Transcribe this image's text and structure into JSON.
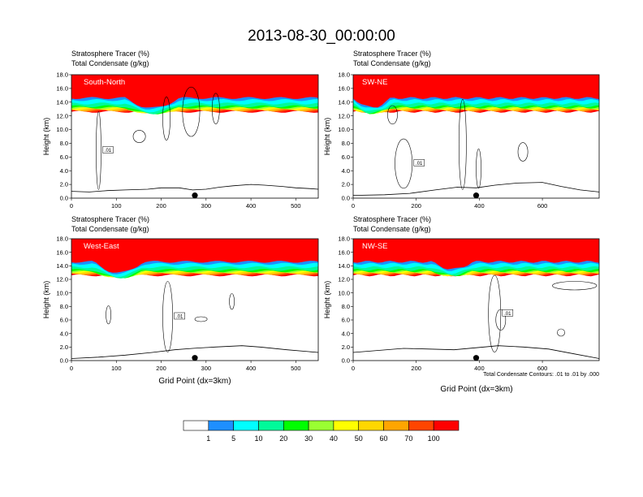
{
  "figure": {
    "title": "2013-08-30_00:00:00",
    "contour_note": "Total Condensate Contours: .01 to .01 by .000",
    "contour_label": ".01",
    "marker": "black-dot"
  },
  "colorbar": {
    "colors": [
      "#ffffff",
      "#1e8fff",
      "#00ffff",
      "#00fa9a",
      "#00ff00",
      "#9aff32",
      "#ffff00",
      "#ffd700",
      "#ffa500",
      "#ff4500",
      "#ff0000"
    ],
    "labels": [
      "1",
      "5",
      "10",
      "20",
      "30",
      "40",
      "50",
      "60",
      "70",
      "100"
    ]
  },
  "chart_data": [
    {
      "type": "heatmap",
      "panel": "South-North",
      "title_line1": "Stratosphere Tracer   (%)",
      "title_line2": "Total Condensate   (g/kg)",
      "ylabel": "Height (km)",
      "xlabel": "",
      "xlim": [
        0,
        550
      ],
      "ylim": [
        0,
        18
      ],
      "xticks": [
        0,
        100,
        200,
        300,
        400,
        500
      ],
      "yticks": [
        "0.0",
        "2.0",
        "4.0",
        "6.0",
        "8.0",
        "10.0",
        "12.0",
        "14.0",
        "16.0",
        "18.0"
      ],
      "marker_x": 275,
      "terrain": [
        [
          0,
          1.0
        ],
        [
          40,
          0.9
        ],
        [
          80,
          1.1
        ],
        [
          120,
          1.2
        ],
        [
          170,
          1.3
        ],
        [
          200,
          1.5
        ],
        [
          240,
          1.5
        ],
        [
          270,
          1.2
        ],
        [
          300,
          1.3
        ],
        [
          330,
          1.6
        ],
        [
          360,
          1.8
        ],
        [
          400,
          2.0
        ],
        [
          430,
          1.9
        ],
        [
          470,
          1.7
        ],
        [
          500,
          1.5
        ],
        [
          530,
          1.4
        ],
        [
          550,
          1.3
        ]
      ],
      "tracer_layers": [
        [
          0,
          14.6
        ],
        [
          1,
          14.3
        ],
        [
          5,
          13.8
        ],
        [
          10,
          13.4
        ],
        [
          20,
          13.2
        ],
        [
          30,
          13.1
        ],
        [
          40,
          13.0
        ],
        [
          50,
          12.9
        ],
        [
          60,
          12.8
        ],
        [
          70,
          12.7
        ],
        [
          100,
          12.6
        ]
      ],
      "tracer_dip": {
        "x_start": 120,
        "x_end": 240,
        "depth": 1.6
      }
    },
    {
      "type": "heatmap",
      "panel": "SW-NE",
      "title_line1": "Stratosphere Tracer   (%)",
      "title_line2": "Total Condensate   (g/kg)",
      "ylabel": "Height (km)",
      "xlabel": "",
      "xlim": [
        0,
        780
      ],
      "ylim": [
        0,
        18
      ],
      "xticks": [
        0,
        200,
        400,
        600
      ],
      "yticks": [
        "0.0",
        "2.0",
        "4.0",
        "6.0",
        "8.0",
        "10.0",
        "12.0",
        "14.0",
        "16.0",
        "18.0"
      ],
      "marker_x": 390,
      "terrain": [
        [
          0,
          0.4
        ],
        [
          100,
          0.5
        ],
        [
          180,
          0.7
        ],
        [
          260,
          1.2
        ],
        [
          330,
          1.6
        ],
        [
          390,
          1.5
        ],
        [
          450,
          1.9
        ],
        [
          520,
          2.2
        ],
        [
          600,
          2.3
        ],
        [
          660,
          1.7
        ],
        [
          720,
          1.2
        ],
        [
          780,
          0.9
        ]
      ],
      "tracer_layers": [
        [
          0,
          14.6
        ],
        [
          1,
          14.3
        ],
        [
          5,
          13.8
        ],
        [
          10,
          13.4
        ],
        [
          20,
          13.2
        ],
        [
          30,
          13.1
        ],
        [
          40,
          13.0
        ],
        [
          50,
          12.9
        ],
        [
          60,
          12.8
        ],
        [
          70,
          12.7
        ],
        [
          100,
          12.6
        ]
      ],
      "tracer_dip": {
        "x_start": 0,
        "x_end": 120,
        "depth": 1.5
      }
    },
    {
      "type": "heatmap",
      "panel": "West-East",
      "title_line1": "Stratosphere Tracer   (%)",
      "title_line2": "Total Condensate   (g/kg)",
      "ylabel": "Height (km)",
      "xlabel": "Grid Point (dx=3km)",
      "xlim": [
        0,
        550
      ],
      "ylim": [
        0,
        18
      ],
      "xticks": [
        0,
        100,
        200,
        300,
        400,
        500
      ],
      "yticks": [
        "0.0",
        "2.0",
        "4.0",
        "6.0",
        "8.0",
        "10.0",
        "12.0",
        "14.0",
        "16.0",
        "18.0"
      ],
      "marker_x": 275,
      "terrain": [
        [
          0,
          0.3
        ],
        [
          60,
          0.5
        ],
        [
          120,
          0.8
        ],
        [
          180,
          1.2
        ],
        [
          230,
          1.6
        ],
        [
          270,
          1.8
        ],
        [
          320,
          2.0
        ],
        [
          380,
          2.2
        ],
        [
          420,
          2.0
        ],
        [
          480,
          1.6
        ],
        [
          550,
          1.2
        ]
      ],
      "tracer_layers": [
        [
          0,
          14.6
        ],
        [
          1,
          14.3
        ],
        [
          5,
          13.8
        ],
        [
          10,
          13.4
        ],
        [
          20,
          13.2
        ],
        [
          30,
          13.1
        ],
        [
          40,
          13.0
        ],
        [
          50,
          12.9
        ],
        [
          60,
          12.8
        ],
        [
          70,
          12.7
        ],
        [
          100,
          12.6
        ]
      ],
      "tracer_dip": {
        "x_start": 50,
        "x_end": 160,
        "depth": 1.8
      }
    },
    {
      "type": "heatmap",
      "panel": "NW-SE",
      "title_line1": "Stratosphere Tracer   (%)",
      "title_line2": "Total Condensate   (g/kg)",
      "ylabel": "Height (km)",
      "xlabel": "Grid Point (dx=3km)",
      "xlim": [
        0,
        780
      ],
      "ylim": [
        0,
        18
      ],
      "xticks": [
        0,
        200,
        400,
        600
      ],
      "yticks": [
        "0.0",
        "2.0",
        "4.0",
        "6.0",
        "8.0",
        "10.0",
        "12.0",
        "14.0",
        "16.0",
        "18.0"
      ],
      "marker_x": 390,
      "terrain": [
        [
          0,
          1.2
        ],
        [
          80,
          1.5
        ],
        [
          160,
          1.8
        ],
        [
          240,
          1.7
        ],
        [
          320,
          1.6
        ],
        [
          390,
          1.9
        ],
        [
          460,
          2.2
        ],
        [
          540,
          2.0
        ],
        [
          620,
          1.7
        ],
        [
          700,
          1.0
        ],
        [
          780,
          0.3
        ]
      ],
      "tracer_layers": [
        [
          0,
          14.6
        ],
        [
          1,
          14.3
        ],
        [
          5,
          13.8
        ],
        [
          10,
          13.4
        ],
        [
          20,
          13.2
        ],
        [
          30,
          13.1
        ],
        [
          40,
          13.0
        ],
        [
          50,
          12.9
        ],
        [
          60,
          12.8
        ],
        [
          70,
          12.7
        ],
        [
          100,
          12.6
        ]
      ],
      "tracer_dip": {
        "x_start": 250,
        "x_end": 380,
        "depth": 1.2
      }
    }
  ]
}
